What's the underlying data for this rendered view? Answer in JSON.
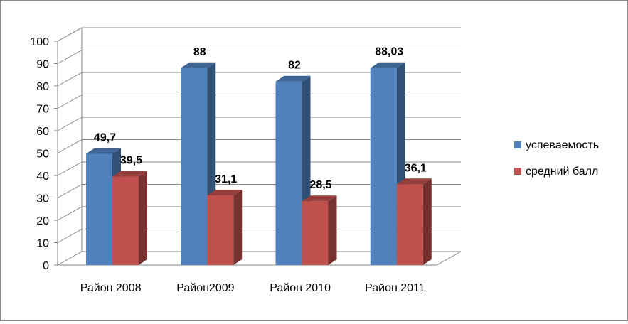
{
  "chart_data": {
    "type": "bar",
    "title": "",
    "xlabel": "",
    "ylabel": "",
    "ylim": [
      0,
      100
    ],
    "yticks": [
      0,
      10,
      20,
      30,
      40,
      50,
      60,
      70,
      80,
      90,
      100
    ],
    "grid": true,
    "legend_position": "right",
    "categories": [
      "Район 2008",
      "Район2009",
      "Район 2010",
      "Район 2011"
    ],
    "series": [
      {
        "name": "успеваемость",
        "values": [
          49.7,
          88,
          82,
          88.03
        ],
        "labels": [
          "49,7",
          "88",
          "82",
          "88,03"
        ],
        "color": "#4f81bd"
      },
      {
        "name": "средний балл",
        "values": [
          39.5,
          31.1,
          28.5,
          36.1
        ],
        "labels": [
          "39,5",
          "31,1",
          "28,5",
          "36,1"
        ],
        "color": "#c0504d"
      }
    ]
  }
}
